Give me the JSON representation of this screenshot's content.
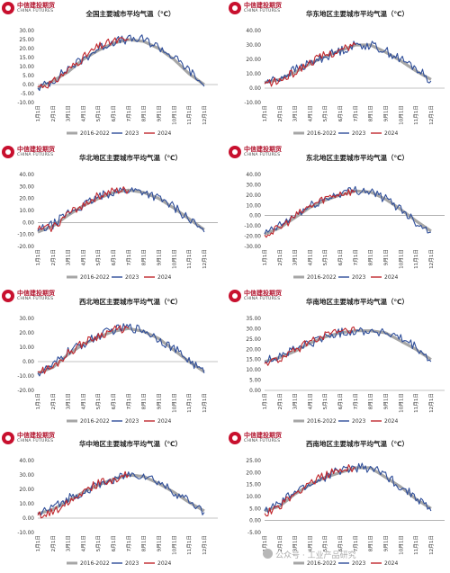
{
  "brand": {
    "name_cn": "中信建投期货",
    "name_en": "CHINA FUTURES"
  },
  "watermark": "公众号 · 工业产品研究",
  "colors": {
    "hist": "#a6a6a6",
    "y2023": "#2e4d99",
    "y2024": "#c0262c"
  },
  "legend": [
    "2016-2022",
    "2023",
    "2024"
  ],
  "months": [
    "1月1日",
    "2月1日",
    "3月1日",
    "4月1日",
    "5月1日",
    "6月1日",
    "7月1日",
    "8月1日",
    "9月1日",
    "10月1日",
    "11月1日",
    "12月1日"
  ],
  "chart_data": [
    {
      "type": "line",
      "title": "全国主要城市平均气温（℃）",
      "yticks": [
        "30.00",
        "25.00",
        "20.00",
        "15.00",
        "10.00",
        "5.00",
        "0.00",
        "-5.00",
        "-10.00"
      ],
      "ylim": [
        -10,
        30
      ],
      "series": [
        {
          "name": "2016-2022",
          "values": [
            -2,
            2,
            7,
            14,
            19,
            23,
            25,
            24,
            20,
            14,
            6,
            0
          ]
        },
        {
          "name": "2023",
          "values": [
            -2,
            2,
            9,
            14,
            20,
            24,
            25,
            25,
            21,
            15,
            8,
            -1
          ]
        },
        {
          "name": "2024",
          "values": [
            -1,
            1,
            8,
            15,
            21,
            24,
            25
          ]
        }
      ]
    },
    {
      "type": "line",
      "title": "华东地区主要城市平均气温（℃）",
      "yticks": [
        "40.00",
        "30.00",
        "20.00",
        "10.00",
        "0.00",
        "-10.00"
      ],
      "ylim": [
        -10,
        40
      ],
      "series": [
        {
          "name": "2016-2022",
          "values": [
            4,
            6,
            11,
            17,
            22,
            26,
            30,
            30,
            25,
            19,
            12,
            6
          ]
        },
        {
          "name": "2023",
          "values": [
            4,
            7,
            13,
            17,
            22,
            26,
            30,
            30,
            26,
            20,
            14,
            5
          ]
        },
        {
          "name": "2024",
          "values": [
            3,
            5,
            11,
            18,
            23,
            26,
            30
          ]
        }
      ]
    },
    {
      "type": "line",
      "title": "华北地区主要城市平均气温（℃）",
      "yticks": [
        "40.00",
        "30.00",
        "20.00",
        "10.00",
        "0.00",
        "-10.00",
        "-20.00"
      ],
      "ylim": [
        -20,
        40
      ],
      "series": [
        {
          "name": "2016-2022",
          "values": [
            -8,
            -3,
            6,
            14,
            20,
            25,
            27,
            25,
            20,
            12,
            3,
            -6
          ]
        },
        {
          "name": "2023",
          "values": [
            -7,
            -2,
            8,
            14,
            21,
            26,
            27,
            26,
            20,
            13,
            3,
            -8
          ]
        },
        {
          "name": "2024",
          "values": [
            -6,
            -4,
            7,
            15,
            22,
            26,
            27
          ]
        }
      ]
    },
    {
      "type": "line",
      "title": "东北地区主要城市平均气温（℃）",
      "yticks": [
        "40.00",
        "30.00",
        "20.00",
        "10.00",
        "0.00",
        "-10.00",
        "-20.00",
        "-30.00"
      ],
      "ylim": [
        -30,
        40
      ],
      "series": [
        {
          "name": "2016-2022",
          "values": [
            -18,
            -12,
            -2,
            8,
            15,
            20,
            24,
            23,
            16,
            6,
            -5,
            -15
          ]
        },
        {
          "name": "2023",
          "values": [
            -18,
            -10,
            0,
            9,
            16,
            22,
            25,
            24,
            16,
            7,
            -6,
            -16
          ]
        },
        {
          "name": "2024",
          "values": [
            -19,
            -12,
            -1,
            9,
            17,
            22,
            24
          ]
        }
      ]
    },
    {
      "type": "line",
      "title": "西北地区主要城市平均气温（℃）",
      "yticks": [
        "30.00",
        "20.00",
        "10.00",
        "0.00",
        "-10.00",
        "-20.00"
      ],
      "ylim": [
        -20,
        30
      ],
      "series": [
        {
          "name": "2016-2022",
          "values": [
            -8,
            -4,
            5,
            12,
            17,
            21,
            23,
            21,
            16,
            8,
            0,
            -7
          ]
        },
        {
          "name": "2023",
          "values": [
            -8,
            -3,
            7,
            12,
            18,
            22,
            24,
            22,
            16,
            9,
            1,
            -8
          ]
        },
        {
          "name": "2024",
          "values": [
            -7,
            -4,
            6,
            13,
            18,
            22,
            23
          ]
        }
      ]
    },
    {
      "type": "line",
      "title": "华南地区主要城市平均气温（℃）",
      "yticks": [
        "35.00",
        "30.00",
        "25.00",
        "20.00",
        "15.00",
        "10.00",
        "5.00",
        "0.00"
      ],
      "ylim": [
        0,
        35
      ],
      "series": [
        {
          "name": "2016-2022",
          "values": [
            14,
            16,
            19,
            23,
            26,
            28,
            29,
            29,
            28,
            24,
            20,
            15
          ]
        },
        {
          "name": "2023",
          "values": [
            14,
            17,
            20,
            23,
            26,
            28,
            29,
            29,
            28,
            25,
            21,
            14
          ]
        },
        {
          "name": "2024",
          "values": [
            13,
            15,
            19,
            24,
            27,
            28,
            29
          ]
        }
      ]
    },
    {
      "type": "line",
      "title": "华中地区主要城市平均气温（℃）",
      "yticks": [
        "40.00",
        "30.00",
        "20.00",
        "10.00",
        "0.00",
        "-10.00"
      ],
      "ylim": [
        -10,
        40
      ],
      "series": [
        {
          "name": "2016-2022",
          "values": [
            3,
            6,
            12,
            18,
            23,
            27,
            30,
            29,
            24,
            18,
            11,
            5
          ]
        },
        {
          "name": "2023",
          "values": [
            3,
            7,
            14,
            18,
            23,
            27,
            30,
            30,
            25,
            18,
            12,
            4
          ]
        },
        {
          "name": "2024",
          "values": [
            2,
            4,
            12,
            19,
            24,
            27,
            30
          ]
        }
      ]
    },
    {
      "type": "line",
      "title": "西南地区主要城市平均气温（℃）",
      "yticks": [
        "25.00",
        "20.00",
        "15.00",
        "10.00",
        "5.00",
        "0.00",
        "-5.00"
      ],
      "ylim": [
        -5,
        25
      ],
      "series": [
        {
          "name": "2016-2022",
          "values": [
            4,
            6,
            11,
            15,
            18,
            20,
            22,
            22,
            18,
            14,
            9,
            5
          ]
        },
        {
          "name": "2023",
          "values": [
            4,
            7,
            12,
            15,
            18,
            21,
            22,
            22,
            19,
            14,
            10,
            4
          ]
        },
        {
          "name": "2024",
          "values": [
            3,
            6,
            11,
            16,
            19,
            21,
            22
          ]
        }
      ]
    }
  ]
}
